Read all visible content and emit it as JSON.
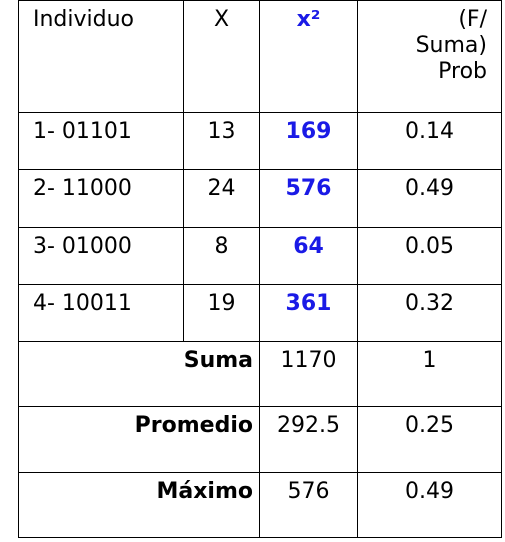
{
  "table": {
    "headers": {
      "individuo": "Individuo",
      "x": "X",
      "x_squared": "x²",
      "prob_line1": "(F/",
      "prob_line2": "Suma)",
      "prob_line3": "Prob"
    },
    "rows": [
      {
        "individuo": "1- 01101",
        "x": "13",
        "x_squared": "169",
        "prob": "0.14"
      },
      {
        "individuo": "2- 11000",
        "x": "24",
        "x_squared": "576",
        "prob": "0.49"
      },
      {
        "individuo": "3- 01000",
        "x": "8",
        "x_squared": "64",
        "prob": "0.05"
      },
      {
        "individuo": "4- 10011",
        "x": "19",
        "x_squared": "361",
        "prob": "0.32"
      }
    ],
    "summary": [
      {
        "label": "Suma",
        "value": "1170",
        "prob": "1"
      },
      {
        "label": "Promedio",
        "value": "292.5",
        "prob": "0.25"
      },
      {
        "label": "Máximo",
        "value": "576",
        "prob": "0.49"
      }
    ]
  },
  "colors": {
    "accent_blue": "#1a1ae6",
    "border": "#000000"
  }
}
